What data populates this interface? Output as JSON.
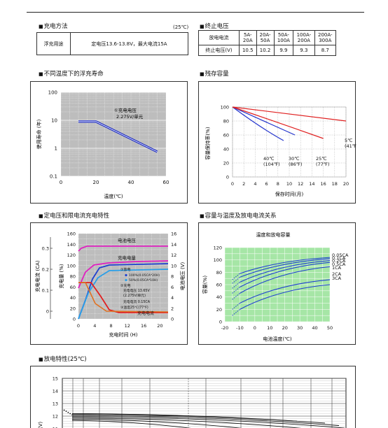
{
  "float": {
    "title": "充电方法",
    "temp_note": "(25℃)",
    "row_label": "浮充用途",
    "row_value": "定电压13.6-13.8V，最大电流15A"
  },
  "cutoff": {
    "title": "终止电压",
    "header_label": "放电电流",
    "row_label": "终止电压(V)",
    "columns": [
      "5A-\n20A",
      "20A-\n50A",
      "50A-\n100A",
      "100A-\n200A",
      "200A-\n300A"
    ],
    "values": [
      "10.5",
      "10.2",
      "9.9",
      "9.3",
      "8.7"
    ]
  },
  "life": {
    "title": "不同温度下的浮充寿命",
    "chart_data": {
      "type": "line",
      "xlabel": "温度(℃)",
      "ylabel": "使用寿命 (年)",
      "x_ticks": [
        "0",
        "20",
        "40",
        "60"
      ],
      "y_ticks": [
        "100",
        "10",
        "1",
        "0.1"
      ],
      "y_scale": "log",
      "annotation1": "①充电电压",
      "annotation2": "2.275V/单元",
      "series": [
        {
          "x": [
            10,
            20,
            55
          ],
          "y": [
            9,
            9,
            0.75
          ]
        }
      ]
    }
  },
  "residual": {
    "title": "残存容量",
    "chart_data": {
      "type": "line",
      "xlabel": "保存时间(月)",
      "ylabel": "容量保持率(%)",
      "x_ticks": [
        "0",
        "2",
        "4",
        "6",
        "8",
        "10",
        "12",
        "14",
        "16",
        "18",
        "20"
      ],
      "y_ticks": [
        "100",
        "80",
        "60",
        "40",
        "20",
        "0"
      ],
      "series": [
        {
          "name": "40℃",
          "sub": "(104℉)",
          "x": [
            0,
            5,
            9
          ],
          "y": [
            100,
            70,
            52
          ],
          "color": "#2233cc"
        },
        {
          "name": "30℃",
          "sub": "(86℉)",
          "x": [
            0,
            6,
            11
          ],
          "y": [
            100,
            78,
            60
          ],
          "color": "#2233cc"
        },
        {
          "name": "25℃",
          "sub": "(77℉)",
          "x": [
            0,
            8,
            16
          ],
          "y": [
            100,
            78,
            55
          ],
          "color": "#e02020"
        },
        {
          "name": "5℃",
          "sub": "(41℉)",
          "x": [
            0,
            10,
            20
          ],
          "y": [
            100,
            90,
            80
          ],
          "color": "#e02020"
        }
      ]
    }
  },
  "charge": {
    "title": "定电压和限电流充电特性",
    "chart_data": {
      "type": "line",
      "xlabel": "充电时间 (H)",
      "y_left_outer_label": "充电电流 (CA)",
      "y_left_label": "充电量 (%)",
      "y_right_label": "电池电压 (V)",
      "x_ticks": [
        "0",
        "4",
        "8",
        "12",
        "16",
        "20"
      ],
      "y_left_outer_ticks": [
        "0.3",
        "0.2",
        "0.1",
        "0"
      ],
      "y_left_ticks": [
        "160",
        "140",
        "120",
        "100",
        "80",
        "60",
        "40",
        "20",
        "0"
      ],
      "y_right_ticks": [
        "16",
        "14",
        "12",
        "10",
        "8",
        "6",
        "4",
        "2",
        "0"
      ],
      "labels": [
        "电池电压",
        "充电电量",
        "①放电",
        "100%(0.05CA*20H)",
        "50%(0.05CA*10H)",
        "②充电",
        "充电电压 13.65V",
        "(2.275V/单元)",
        "充电电流 0.15CA",
        "③温度25℃(77℉)",
        "充电电流"
      ]
    }
  },
  "capacity": {
    "title": "容量与温度及放电电流关系",
    "chart_data": {
      "type": "line",
      "title": "温度和放电容量",
      "xlabel": "电池温度(℃)",
      "ylabel": "容量(%)",
      "x_ticks": [
        "-20",
        "-10",
        "0",
        "10",
        "20",
        "30",
        "40",
        "50"
      ],
      "y_ticks": [
        "120",
        "100",
        "80",
        "60",
        "40",
        "20",
        "0"
      ],
      "legend": [
        "0.05CA",
        "0.1CA",
        "0.2CA",
        "0.5CA",
        "1CA",
        "2CA",
        "3CA"
      ]
    }
  },
  "discharge": {
    "title": "放电特性(25℃)",
    "chart_data": {
      "type": "line",
      "ylabel": "(V)",
      "y_ticks": [
        "15",
        "14",
        "13",
        "12",
        "11"
      ]
    }
  }
}
